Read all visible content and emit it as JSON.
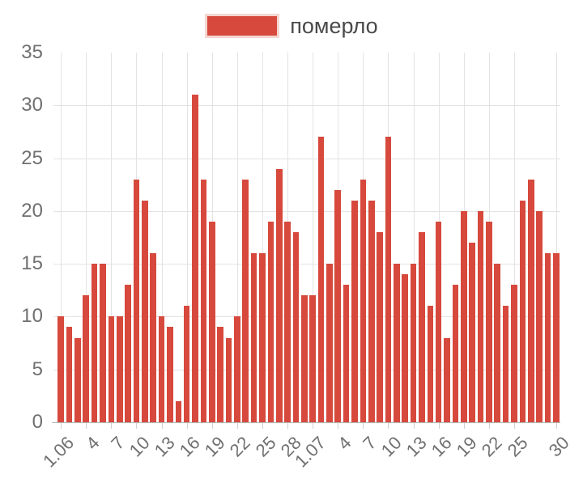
{
  "legend": {
    "label": "померло"
  },
  "colors": {
    "bar": "#d6493c",
    "grid": "#e3e3e3",
    "axis_line": "#b5b5b5",
    "tick_mark": "#d0d0d0",
    "axis_label_text": "#707070",
    "legend_text": "#4a4a4a",
    "legend_swatch_border": "#f3d6d0",
    "background": "#ffffff"
  },
  "chart_data": {
    "type": "bar",
    "title": "",
    "legend_entries": [
      "померло"
    ],
    "legend_position": "top-center",
    "grid": true,
    "ylim": [
      0,
      35
    ],
    "y_ticks": [
      0,
      5,
      10,
      15,
      20,
      25,
      30,
      35
    ],
    "x_tick_labels": [
      "1.06",
      "4",
      "7",
      "10",
      "13",
      "16",
      "19",
      "22",
      "25",
      "28",
      "1.07",
      "4",
      "7",
      "10",
      "13",
      "16",
      "19",
      "22",
      "25",
      "30"
    ],
    "x_tick_slots": [
      0,
      3,
      6,
      9,
      12,
      15,
      18,
      21,
      24,
      27,
      30,
      33,
      36,
      39,
      42,
      45,
      48,
      51,
      54,
      59
    ],
    "series": [
      {
        "name": "померло",
        "values": [
          10,
          9,
          8,
          12,
          15,
          15,
          10,
          10,
          13,
          23,
          21,
          16,
          10,
          9,
          2,
          11,
          31,
          23,
          19,
          9,
          8,
          10,
          23,
          16,
          16,
          19,
          24,
          19,
          18,
          12,
          12,
          27,
          15,
          22,
          13,
          21,
          23,
          21,
          18,
          27,
          15,
          14,
          15,
          18,
          11,
          19,
          8,
          13,
          20,
          17,
          20,
          19,
          15,
          11,
          13,
          21,
          23,
          20,
          16,
          16
        ]
      }
    ]
  }
}
